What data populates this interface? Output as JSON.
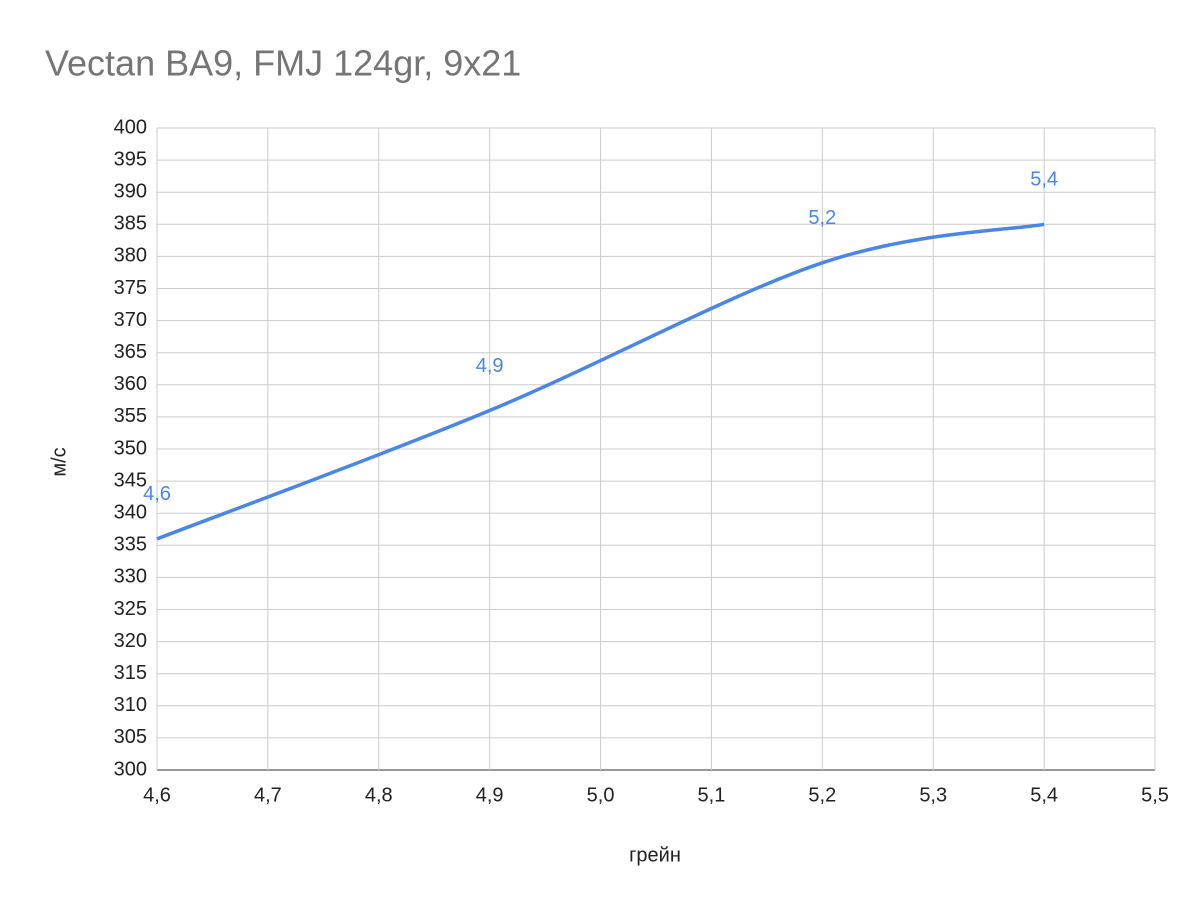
{
  "chart_data": {
    "type": "line",
    "title": "Vectan BA9, FMJ 124gr, 9x21",
    "x_label": "грейн",
    "y_label": "м/с",
    "x": [
      4.6,
      4.9,
      5.2,
      5.4
    ],
    "data_labels": [
      "4,6",
      "4,9",
      "5,2",
      "5,4"
    ],
    "series": [
      {
        "name": "м/с",
        "color": "#4a86e8",
        "values": [
          336,
          356,
          379,
          385
        ]
      }
    ],
    "xlim": [
      4.6,
      5.5
    ],
    "xticks": [
      {
        "value": 4.6,
        "label": "4,6"
      },
      {
        "value": 4.7,
        "label": "4,7"
      },
      {
        "value": 4.8,
        "label": "4,8"
      },
      {
        "value": 4.9,
        "label": "4,9"
      },
      {
        "value": 5.0,
        "label": "5,0"
      },
      {
        "value": 5.1,
        "label": "5,1"
      },
      {
        "value": 5.2,
        "label": "5,2"
      },
      {
        "value": 5.3,
        "label": "5,3"
      },
      {
        "value": 5.4,
        "label": "5,4"
      },
      {
        "value": 5.5,
        "label": "5,5"
      }
    ],
    "ylim": [
      300,
      400
    ],
    "yticks": [
      300,
      305,
      310,
      315,
      320,
      325,
      330,
      335,
      340,
      345,
      350,
      355,
      360,
      365,
      370,
      375,
      380,
      385,
      390,
      395,
      400
    ],
    "grid": true
  }
}
